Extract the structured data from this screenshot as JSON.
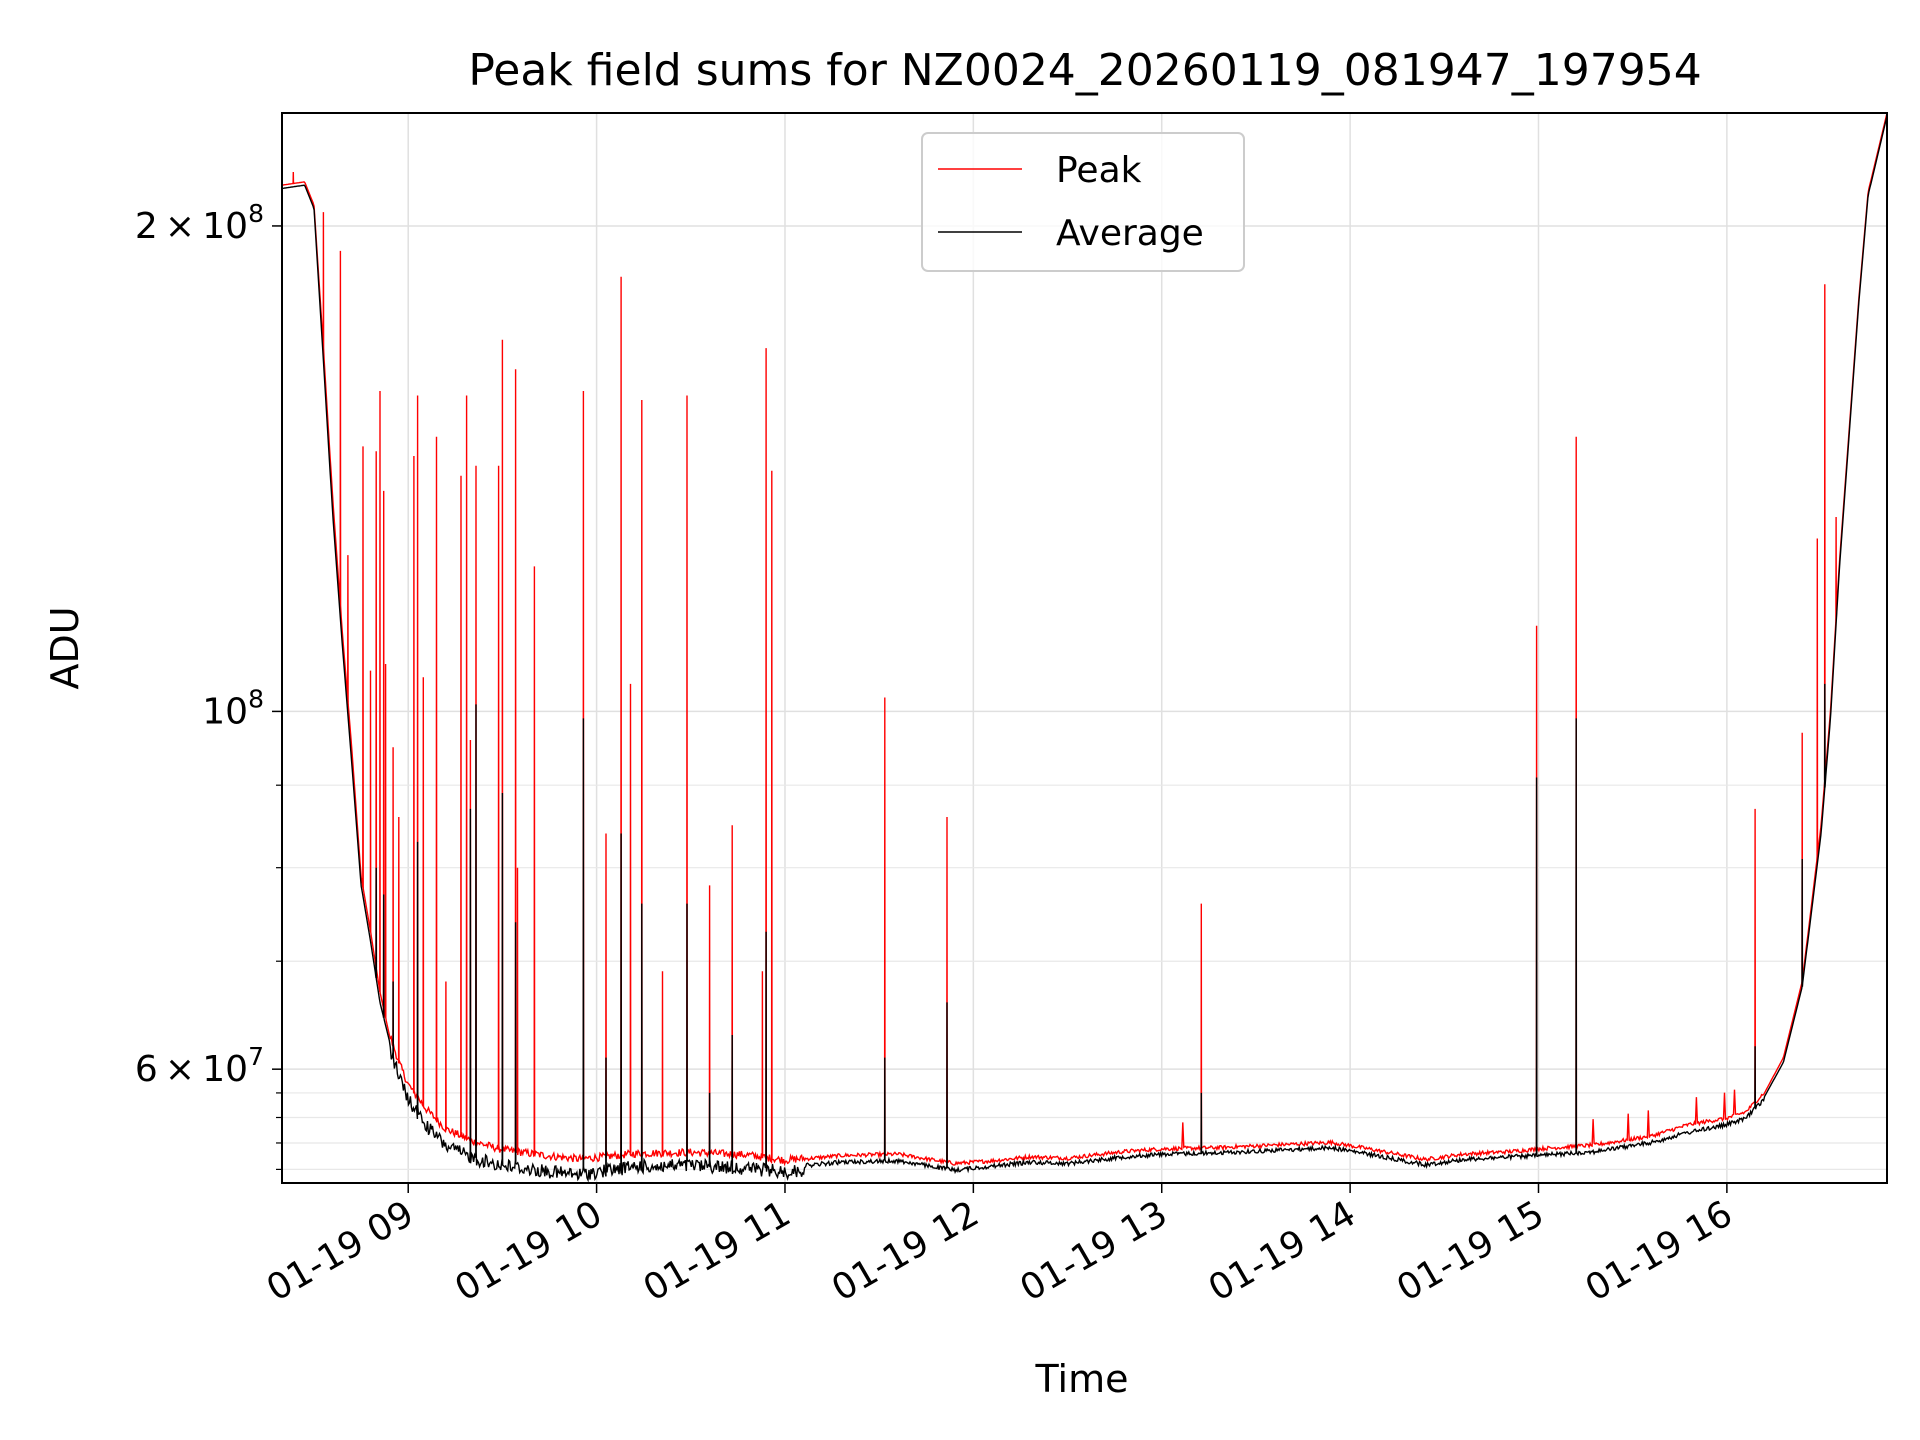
{
  "chart_data": {
    "type": "line",
    "title": "Peak field sums for NZ0024_20260119_081947_197954",
    "xlabel": "Time",
    "ylabel": "ADU",
    "yscale": "log",
    "ylim": [
      51000000,
      235000000
    ],
    "xlim_hours": [
      8.33,
      16.85
    ],
    "grid": true,
    "legend_position": "upper-center",
    "x_ticks": [
      {
        "hour": 9,
        "label": "01-19 09"
      },
      {
        "hour": 10,
        "label": "01-19 10"
      },
      {
        "hour": 11,
        "label": "01-19 11"
      },
      {
        "hour": 12,
        "label": "01-19 12"
      },
      {
        "hour": 13,
        "label": "01-19 13"
      },
      {
        "hour": 14,
        "label": "01-19 14"
      },
      {
        "hour": 15,
        "label": "01-19 15"
      },
      {
        "hour": 16,
        "label": "01-19 16"
      }
    ],
    "y_major_ticks": [
      {
        "value": 60000000,
        "mant": "6",
        "exp": "7"
      },
      {
        "value": 100000000,
        "mant": "",
        "exp": "8"
      },
      {
        "value": 200000000,
        "mant": "2",
        "exp": "8"
      }
    ],
    "y_minor_ticks": [
      70000000,
      80000000,
      90000000
    ],
    "series": [
      {
        "name": "Peak",
        "color": "#ff0000",
        "baseline": [
          [
            8.33,
            212000000
          ],
          [
            8.45,
            213000000
          ],
          [
            8.5,
            206000000
          ],
          [
            8.55,
            168000000
          ],
          [
            8.6,
            135000000
          ],
          [
            8.65,
            112000000
          ],
          [
            8.7,
            95000000
          ],
          [
            8.75,
            79000000
          ],
          [
            8.8,
            73000000
          ],
          [
            8.85,
            67000000
          ],
          [
            8.9,
            63000000
          ],
          [
            8.95,
            60500000
          ],
          [
            9.0,
            58600000
          ],
          [
            9.1,
            56500000
          ],
          [
            9.2,
            55000000
          ],
          [
            9.35,
            54000000
          ],
          [
            9.5,
            53400000
          ],
          [
            9.7,
            53000000
          ],
          [
            9.9,
            52700000
          ],
          [
            10.0,
            52800000
          ],
          [
            10.2,
            53100000
          ],
          [
            10.5,
            53200000
          ],
          [
            10.8,
            53000000
          ],
          [
            11.0,
            52600000
          ],
          [
            11.3,
            53000000
          ],
          [
            11.6,
            53100000
          ],
          [
            11.9,
            52400000
          ],
          [
            12.1,
            52600000
          ],
          [
            12.3,
            52900000
          ],
          [
            12.5,
            52800000
          ],
          [
            12.8,
            53300000
          ],
          [
            13.0,
            53500000
          ],
          [
            13.3,
            53600000
          ],
          [
            13.6,
            53800000
          ],
          [
            13.9,
            54000000
          ],
          [
            14.1,
            53500000
          ],
          [
            14.4,
            52700000
          ],
          [
            14.6,
            53100000
          ],
          [
            14.85,
            53300000
          ],
          [
            15.0,
            53500000
          ],
          [
            15.3,
            53800000
          ],
          [
            15.6,
            54500000
          ],
          [
            15.8,
            55400000
          ],
          [
            16.0,
            55900000
          ],
          [
            16.1,
            56400000
          ],
          [
            16.2,
            58000000
          ],
          [
            16.3,
            61000000
          ],
          [
            16.4,
            68000000
          ],
          [
            16.5,
            85000000
          ],
          [
            16.55,
            100000000
          ],
          [
            16.6,
            125000000
          ],
          [
            16.65,
            150000000
          ],
          [
            16.7,
            180000000
          ],
          [
            16.75,
            210000000
          ],
          [
            16.85,
            235000000
          ]
        ],
        "spikes": [
          [
            8.39,
            216000000
          ],
          [
            8.55,
            204000000
          ],
          [
            8.64,
            193000000
          ],
          [
            8.68,
            125000000
          ],
          [
            8.76,
            146000000
          ],
          [
            8.8,
            106000000
          ],
          [
            8.83,
            145000000
          ],
          [
            8.85,
            158000000
          ],
          [
            8.87,
            137000000
          ],
          [
            8.88,
            107000000
          ],
          [
            8.92,
            95000000
          ],
          [
            8.95,
            86000000
          ],
          [
            9.03,
            144000000
          ],
          [
            9.05,
            157000000
          ],
          [
            9.08,
            105000000
          ],
          [
            9.15,
            148000000
          ],
          [
            9.2,
            68000000
          ],
          [
            9.28,
            140000000
          ],
          [
            9.31,
            157000000
          ],
          [
            9.33,
            96000000
          ],
          [
            9.36,
            142000000
          ],
          [
            9.48,
            142000000
          ],
          [
            9.5,
            170000000
          ],
          [
            9.57,
            163000000
          ],
          [
            9.58,
            80000000
          ],
          [
            9.67,
            123000000
          ],
          [
            9.93,
            158000000
          ],
          [
            10.05,
            84000000
          ],
          [
            10.13,
            186000000
          ],
          [
            10.18,
            104000000
          ],
          [
            10.24,
            156000000
          ],
          [
            10.35,
            69000000
          ],
          [
            10.48,
            157000000
          ],
          [
            10.6,
            78000000
          ],
          [
            10.72,
            85000000
          ],
          [
            10.88,
            69000000
          ],
          [
            10.9,
            168000000
          ],
          [
            10.93,
            141000000
          ],
          [
            11.53,
            102000000
          ],
          [
            11.86,
            86000000
          ],
          [
            13.21,
            76000000
          ],
          [
            14.99,
            113000000
          ],
          [
            15.2,
            148000000
          ],
          [
            16.15,
            87000000
          ],
          [
            16.4,
            97000000
          ],
          [
            16.48,
            128000000
          ],
          [
            16.52,
            184000000
          ],
          [
            16.58,
            132000000
          ]
        ]
      },
      {
        "name": "Average",
        "color": "#000000",
        "baseline": [
          [
            8.33,
            211000000
          ],
          [
            8.45,
            212000000
          ],
          [
            8.5,
            205000000
          ],
          [
            8.55,
            165000000
          ],
          [
            8.6,
            132000000
          ],
          [
            8.65,
            110000000
          ],
          [
            8.7,
            93000000
          ],
          [
            8.75,
            78000000
          ],
          [
            8.8,
            72000000
          ],
          [
            8.85,
            66000000
          ],
          [
            8.9,
            62500000
          ],
          [
            8.95,
            60000000
          ],
          [
            9.0,
            58000000
          ],
          [
            9.1,
            55800000
          ],
          [
            9.2,
            54300000
          ],
          [
            9.35,
            53300000
          ],
          [
            9.5,
            52800000
          ],
          [
            9.7,
            52400000
          ],
          [
            9.9,
            52100000
          ],
          [
            10.0,
            52300000
          ],
          [
            10.2,
            52700000
          ],
          [
            10.5,
            52800000
          ],
          [
            10.8,
            52600000
          ],
          [
            11.0,
            52300000
          ],
          [
            11.3,
            52700000
          ],
          [
            11.6,
            52800000
          ],
          [
            11.9,
            52100000
          ],
          [
            12.1,
            52400000
          ],
          [
            12.3,
            52700000
          ],
          [
            12.5,
            52600000
          ],
          [
            12.8,
            53100000
          ],
          [
            13.0,
            53300000
          ],
          [
            13.3,
            53400000
          ],
          [
            13.6,
            53600000
          ],
          [
            13.9,
            53800000
          ],
          [
            14.1,
            53300000
          ],
          [
            14.4,
            52500000
          ],
          [
            14.6,
            52900000
          ],
          [
            14.85,
            53100000
          ],
          [
            15.0,
            53200000
          ],
          [
            15.3,
            53500000
          ],
          [
            15.6,
            54200000
          ],
          [
            15.8,
            55000000
          ],
          [
            16.0,
            55600000
          ],
          [
            16.1,
            56100000
          ],
          [
            16.2,
            57700000
          ],
          [
            16.3,
            60600000
          ],
          [
            16.4,
            67500000
          ],
          [
            16.5,
            84000000
          ],
          [
            16.55,
            99000000
          ],
          [
            16.6,
            124000000
          ],
          [
            16.65,
            149000000
          ],
          [
            16.7,
            179000000
          ],
          [
            16.75,
            209000000
          ],
          [
            16.85,
            234000000
          ]
        ],
        "spikes": [
          [
            8.83,
            80000000
          ],
          [
            8.87,
            77000000
          ],
          [
            8.92,
            68000000
          ],
          [
            9.05,
            83000000
          ],
          [
            9.33,
            87000000
          ],
          [
            9.36,
            101000000
          ],
          [
            9.5,
            89000000
          ],
          [
            9.57,
            74000000
          ],
          [
            9.93,
            99000000
          ],
          [
            10.05,
            61000000
          ],
          [
            10.13,
            84000000
          ],
          [
            10.24,
            76000000
          ],
          [
            10.48,
            76000000
          ],
          [
            10.6,
            58000000
          ],
          [
            10.72,
            63000000
          ],
          [
            10.9,
            73000000
          ],
          [
            11.53,
            61000000
          ],
          [
            11.86,
            66000000
          ],
          [
            13.21,
            58000000
          ],
          [
            14.99,
            91000000
          ],
          [
            15.2,
            99000000
          ],
          [
            16.15,
            62000000
          ],
          [
            16.4,
            81000000
          ],
          [
            16.52,
            104000000
          ]
        ]
      }
    ]
  }
}
